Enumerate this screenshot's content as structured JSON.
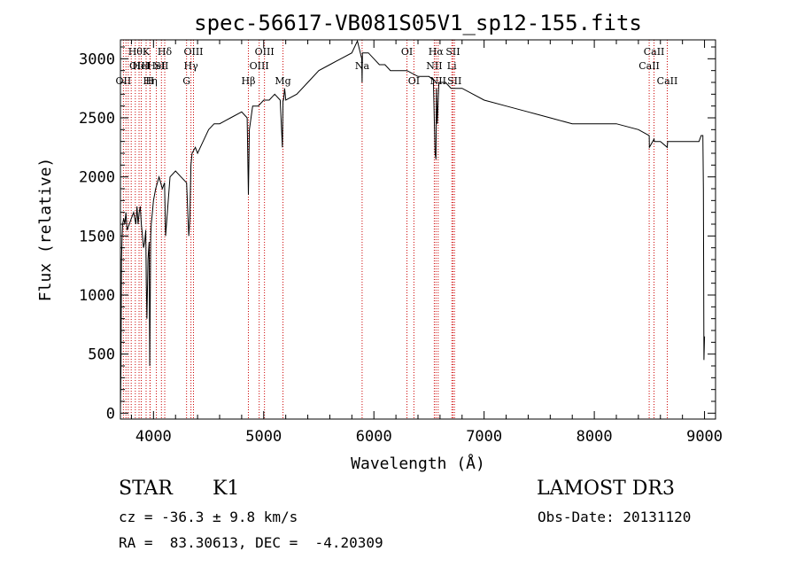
{
  "chart_data": {
    "type": "line",
    "title": "spec-56617-VB081S05V1_sp12-155.fits",
    "xlabel": "Wavelength (Å)",
    "ylabel": "Flux (relative)",
    "xlim": [
      3700,
      9100
    ],
    "ylim": [
      -50,
      3160
    ],
    "xticks": [
      4000,
      5000,
      6000,
      7000,
      8000,
      9000
    ],
    "yticks": [
      0,
      500,
      1000,
      1500,
      2000,
      2500,
      3000
    ],
    "grid": false,
    "series": [
      {
        "name": "flux",
        "x": [
          3700,
          3705,
          3710,
          3715,
          3720,
          3730,
          3740,
          3750,
          3760,
          3780,
          3800,
          3820,
          3840,
          3850,
          3860,
          3870,
          3880,
          3890,
          3900,
          3910,
          3920,
          3930,
          3935,
          3940,
          3950,
          3960,
          3966,
          3970,
          3975,
          3980,
          3990,
          4000,
          4020,
          4050,
          4080,
          4100,
          4110,
          4150,
          4200,
          4250,
          4300,
          4320,
          4330,
          4340,
          4350,
          4380,
          4400,
          4450,
          4500,
          4550,
          4600,
          4700,
          4800,
          4850,
          4861,
          4870,
          4900,
          4950,
          5000,
          5050,
          5100,
          5150,
          5170,
          5175,
          5180,
          5190,
          5200,
          5300,
          5400,
          5500,
          5600,
          5700,
          5800,
          5850,
          5890,
          5893,
          5896,
          5920,
          5950,
          6000,
          6050,
          6100,
          6150,
          6200,
          6300,
          6400,
          6500,
          6540,
          6555,
          6563,
          6568,
          6575,
          6590,
          6600,
          6650,
          6700,
          6800,
          6900,
          7000,
          7200,
          7400,
          7600,
          7800,
          8000,
          8200,
          8400,
          8498,
          8500,
          8542,
          8545,
          8600,
          8662,
          8665,
          8700,
          8750,
          8800,
          8850,
          8900,
          8950,
          8970,
          8985,
          8990,
          8995,
          9000
        ],
        "values": [
          0,
          400,
          1300,
          1500,
          1600,
          1650,
          1600,
          1700,
          1550,
          1600,
          1650,
          1700,
          1600,
          1750,
          1600,
          1700,
          1750,
          1600,
          1500,
          1400,
          1450,
          1550,
          1100,
          800,
          1300,
          1450,
          400,
          900,
          1500,
          1600,
          1700,
          1800,
          1900,
          2000,
          1900,
          1950,
          1500,
          2000,
          2050,
          2000,
          1950,
          1500,
          1650,
          2100,
          2200,
          2250,
          2200,
          2300,
          2400,
          2450,
          2450,
          2500,
          2550,
          2500,
          1850,
          2400,
          2600,
          2600,
          2650,
          2650,
          2700,
          2650,
          2250,
          2650,
          2650,
          2750,
          2650,
          2700,
          2800,
          2900,
          2950,
          3000,
          3050,
          3150,
          3000,
          2800,
          3050,
          3050,
          3050,
          3000,
          2950,
          2950,
          2900,
          2900,
          2900,
          2850,
          2850,
          2820,
          2200,
          2150,
          2750,
          2450,
          2800,
          2800,
          2800,
          2750,
          2750,
          2700,
          2650,
          2600,
          2550,
          2500,
          2450,
          2450,
          2450,
          2400,
          2350,
          2250,
          2320,
          2300,
          2300,
          2250,
          2300,
          2300,
          2300,
          2300,
          2300,
          2300,
          2300,
          2350,
          2350,
          1900,
          450,
          650
        ],
        "color": "#000000"
      }
    ],
    "lines": [
      {
        "wl": 3727,
        "label": "OII",
        "row": 3
      },
      {
        "wl": 3750,
        "label": "",
        "row": 0
      },
      {
        "wl": 3771,
        "label": "",
        "row": 0
      },
      {
        "wl": 3798,
        "label": "",
        "row": 0
      },
      {
        "wl": 3835,
        "label": "Hθ",
        "row": 1
      },
      {
        "wl": 3869,
        "label": "OIII",
        "row": 2
      },
      {
        "wl": 3889,
        "label": "HeI",
        "row": 2
      },
      {
        "wl": 3933,
        "label": "K",
        "row": 1
      },
      {
        "wl": 3968,
        "label": "H",
        "row": 3
      },
      {
        "wl": 3970,
        "label": "Hη",
        "row": 3
      },
      {
        "wl": 4026,
        "label": "HeI",
        "row": 2
      },
      {
        "wl": 4072,
        "label": "SII",
        "row": 2
      },
      {
        "wl": 4102,
        "label": "Hδ",
        "row": 1
      },
      {
        "wl": 4300,
        "label": "G",
        "row": 3
      },
      {
        "wl": 4340,
        "label": "Hγ",
        "row": 2
      },
      {
        "wl": 4363,
        "label": "OIII",
        "row": 1
      },
      {
        "wl": 4861,
        "label": "Hβ",
        "row": 3
      },
      {
        "wl": 4959,
        "label": "OIII",
        "row": 2
      },
      {
        "wl": 5007,
        "label": "OIII",
        "row": 1
      },
      {
        "wl": 5175,
        "label": "Mg",
        "row": 3
      },
      {
        "wl": 5893,
        "label": "Na",
        "row": 2
      },
      {
        "wl": 6300,
        "label": "OI",
        "row": 1
      },
      {
        "wl": 6363,
        "label": "OI",
        "row": 3
      },
      {
        "wl": 6548,
        "label": "NII",
        "row": 2
      },
      {
        "wl": 6563,
        "label": "Hα",
        "row": 1
      },
      {
        "wl": 6583,
        "label": "NII",
        "row": 3
      },
      {
        "wl": 6707,
        "label": "Li",
        "row": 2
      },
      {
        "wl": 6717,
        "label": "SII",
        "row": 1
      },
      {
        "wl": 6731,
        "label": "SII",
        "row": 3
      },
      {
        "wl": 8498,
        "label": "CaII",
        "row": 2
      },
      {
        "wl": 8542,
        "label": "CaII",
        "row": 1
      },
      {
        "wl": 8662,
        "label": "CaII",
        "row": 3
      }
    ]
  },
  "info": {
    "object_type": "STAR",
    "subclass": "K1",
    "survey": "LAMOST DR3",
    "cz": "cz = -36.3 ± 9.8 km/s",
    "obs_date": "Obs-Date: 20131120",
    "radec": "RA =  83.30613, DEC =  -4.20309"
  }
}
